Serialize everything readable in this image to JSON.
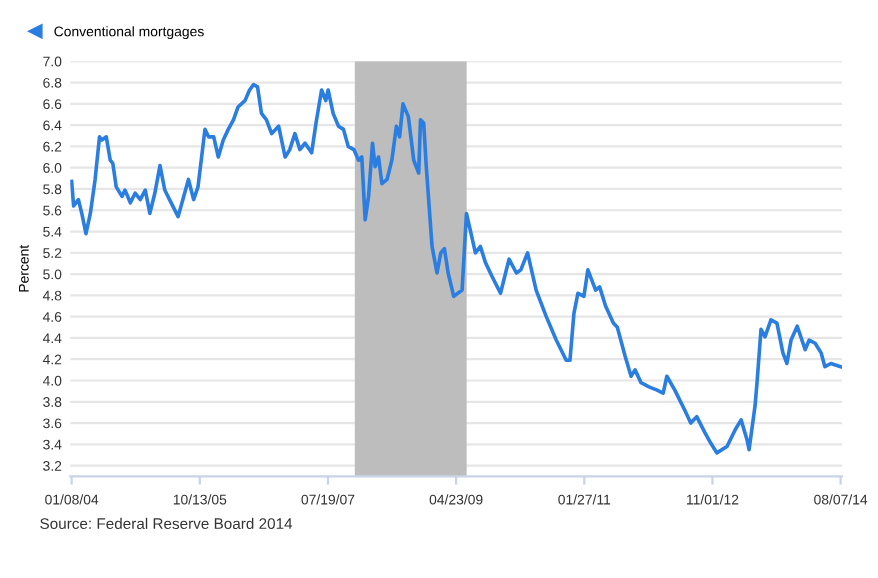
{
  "chart_data": {
    "type": "line",
    "ylabel": "Percent",
    "annotations": [
      "Source: Federal Reserve Board 2014"
    ],
    "legend": "top left",
    "grid": "y",
    "xlim": [
      "2004-01-01",
      "2014-08-14"
    ],
    "xticks": [
      {
        "value": "2004-01-08",
        "label": "01/08/04"
      },
      {
        "value": "2005-10-13",
        "label": "10/13/05"
      },
      {
        "value": "2007-07-19",
        "label": "07/19/07"
      },
      {
        "value": "2009-04-23",
        "label": "04/23/09"
      },
      {
        "value": "2011-01-27",
        "label": "01/27/11"
      },
      {
        "value": "2012-11-01",
        "label": "11/01/12"
      },
      {
        "value": "2014-08-07",
        "label": "08/07/14"
      }
    ],
    "ylim": [
      3.1,
      7.0
    ],
    "yticks": [
      3.2,
      3.4,
      3.6,
      3.8,
      {
        "value": 4,
        "label": "4.0"
      },
      4.2,
      4.4,
      4.6,
      4.8,
      {
        "value": 5,
        "label": "5.0"
      },
      5.2,
      5.4,
      5.6,
      5.8,
      {
        "value": 6,
        "label": "6.0"
      },
      6.2,
      6.4,
      6.6,
      6.8,
      {
        "value": 7,
        "label": "7.0"
      }
    ],
    "bands": [
      {
        "axis": "x",
        "from": "2007-12-01",
        "to": "2009-06-15",
        "color": "#bdbdbd"
      }
    ],
    "series": [
      {
        "name": "Conventional mortgages",
        "color": "#2a7de1",
        "x": [
          "2004-01-08",
          "2004-01-18",
          "2004-02-11",
          "2004-02-28",
          "2004-03-20",
          "2004-04-11",
          "2004-05-05",
          "2004-05-27",
          "2004-06-08",
          "2004-06-30",
          "2004-07-20",
          "2004-08-02",
          "2004-08-19",
          "2004-09-17",
          "2004-10-02",
          "2004-10-29",
          "2004-11-22",
          "2004-12-18",
          "2005-01-12",
          "2005-02-04",
          "2005-03-01",
          "2005-03-27",
          "2005-04-20",
          "2005-05-14",
          "2005-06-26",
          "2005-07-20",
          "2005-08-17",
          "2005-09-12",
          "2005-10-04",
          "2005-11-08",
          "2005-11-26",
          "2005-12-22",
          "2006-01-14",
          "2006-02-08",
          "2006-03-05",
          "2006-03-31",
          "2006-04-23",
          "2006-05-28",
          "2006-06-20",
          "2006-07-10",
          "2006-07-30",
          "2006-08-19",
          "2006-09-13",
          "2006-10-09",
          "2006-11-13",
          "2006-12-16",
          "2007-01-08",
          "2007-02-03",
          "2007-02-28",
          "2007-03-26",
          "2007-04-28",
          "2007-05-20",
          "2007-06-17",
          "2007-07-08",
          "2007-07-20",
          "2007-08-14",
          "2007-09-10",
          "2007-10-05",
          "2007-10-29",
          "2007-11-26",
          "2007-12-20",
          "2008-01-05",
          "2008-01-22",
          "2008-02-08",
          "2008-02-28",
          "2008-03-12",
          "2008-03-29",
          "2008-04-15",
          "2008-05-11",
          "2008-06-04",
          "2008-06-27",
          "2008-07-13",
          "2008-07-30",
          "2008-08-26",
          "2008-09-22",
          "2008-10-17",
          "2008-10-26",
          "2008-11-11",
          "2008-11-24",
          "2008-12-23",
          "2009-01-17",
          "2009-02-05",
          "2009-02-23",
          "2009-03-14",
          "2009-04-11",
          "2009-05-23",
          "2009-06-14",
          "2009-07-29",
          "2009-08-23",
          "2009-09-17",
          "2009-10-20",
          "2009-12-02",
          "2010-01-14",
          "2010-02-20",
          "2010-03-14",
          "2010-04-17",
          "2010-05-30",
          "2010-07-20",
          "2010-09-08",
          "2010-10-28",
          "2010-11-16",
          "2010-12-06",
          "2010-12-26",
          "2011-01-25",
          "2011-02-14",
          "2011-03-25",
          "2011-04-14",
          "2011-05-14",
          "2011-06-22",
          "2011-07-12",
          "2011-08-20",
          "2011-09-19",
          "2011-10-09",
          "2011-11-08",
          "2011-12-18",
          "2012-01-28",
          "2012-02-27",
          "2012-03-17",
          "2012-04-26",
          "2012-06-15",
          "2012-07-15",
          "2012-08-14",
          "2012-09-24",
          "2012-10-24",
          "2012-11-23",
          "2013-01-13",
          "2013-02-24",
          "2013-03-25",
          "2013-04-24",
          "2013-05-04",
          "2013-06-03",
          "2013-06-13",
          "2013-07-03",
          "2013-07-23",
          "2013-08-22",
          "2013-09-21",
          "2013-10-21",
          "2013-11-10",
          "2013-12-01",
          "2014-01-01",
          "2014-02-10",
          "2014-03-02",
          "2014-04-01",
          "2014-05-01",
          "2014-05-20",
          "2014-06-19",
          "2014-08-07"
        ],
        "values": [
          5.87,
          5.64,
          5.7,
          5.57,
          5.38,
          5.57,
          5.89,
          6.29,
          6.26,
          6.29,
          6.07,
          6.04,
          5.82,
          5.73,
          5.79,
          5.67,
          5.76,
          5.7,
          5.79,
          5.57,
          5.76,
          6.02,
          5.79,
          5.7,
          5.54,
          5.7,
          5.89,
          5.7,
          5.82,
          6.36,
          6.29,
          6.29,
          6.1,
          6.26,
          6.36,
          6.45,
          6.57,
          6.63,
          6.73,
          6.78,
          6.76,
          6.51,
          6.45,
          6.32,
          6.39,
          6.1,
          6.17,
          6.32,
          6.17,
          6.23,
          6.14,
          6.42,
          6.73,
          6.63,
          6.73,
          6.51,
          6.39,
          6.36,
          6.2,
          6.17,
          6.07,
          6.1,
          5.51,
          5.73,
          6.23,
          6.01,
          6.1,
          5.85,
          5.89,
          6.07,
          6.39,
          6.29,
          6.6,
          6.48,
          6.07,
          5.95,
          6.45,
          6.42,
          6.01,
          5.26,
          5.01,
          5.2,
          5.24,
          5.01,
          4.79,
          4.85,
          5.57,
          5.2,
          5.26,
          5.11,
          4.98,
          4.82,
          5.14,
          5.01,
          5.04,
          5.2,
          4.85,
          4.6,
          4.38,
          4.19,
          4.19,
          4.63,
          4.82,
          4.79,
          5.04,
          4.85,
          4.88,
          4.7,
          4.54,
          4.5,
          4.23,
          4.04,
          4.1,
          3.98,
          3.94,
          3.91,
          3.88,
          4.04,
          3.91,
          3.72,
          3.6,
          3.66,
          3.51,
          3.41,
          3.32,
          3.38,
          3.54,
          3.63,
          3.44,
          3.35,
          3.76,
          3.98,
          4.48,
          4.41,
          4.57,
          4.54,
          4.26,
          4.16,
          4.38,
          4.51,
          4.29,
          4.38,
          4.35,
          4.26,
          4.13,
          4.16,
          4.13
        ]
      }
    ]
  }
}
